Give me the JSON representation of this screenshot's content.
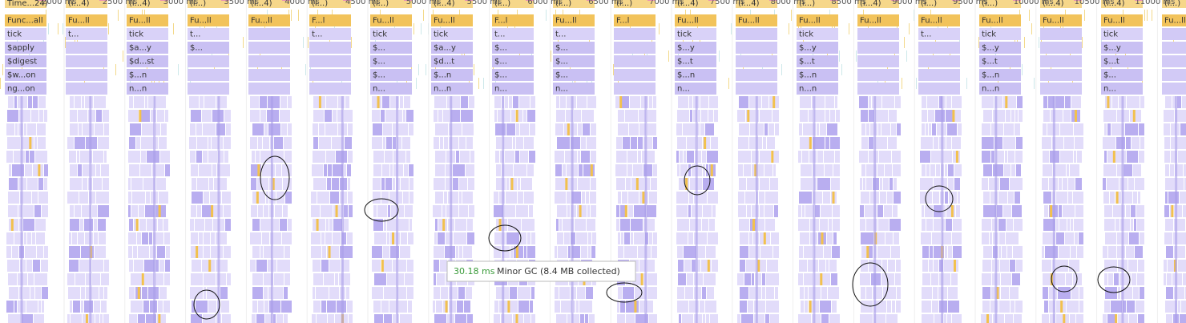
{
  "ruler": [
    "2000 ms",
    "2500 ms",
    "3000 ms",
    "3500 ms",
    "4000 ms",
    "4500 ms",
    "5000 ms",
    "5500 ms",
    "6000 ms",
    "6500 ms",
    "7000 ms",
    "7500 ms",
    "8000 ms",
    "8500 ms",
    "9000 ms",
    "9500 ms",
    "10000 ms",
    "10500 ms",
    "11000 ms"
  ],
  "columns": [
    {
      "labels": [
        "Time...24)",
        "Func...all",
        "tick",
        "$apply",
        "$digest",
        "$w...on",
        "ng...on"
      ]
    },
    {
      "labels": [
        "(i...4)",
        "Fu...ll",
        "t..."
      ]
    },
    {
      "labels": [
        "(i...4)",
        "Fu...ll",
        "tick",
        "$a...y",
        "$d...st",
        "$...n",
        "n...n"
      ]
    },
    {
      "labels": [
        "(i...)",
        "Fu...ll",
        "t...",
        "$..."
      ]
    },
    {
      "labels": [
        "(i...4)",
        "Fu...ll"
      ]
    },
    {
      "labels": [
        "(i...)",
        "F...l",
        "t..."
      ]
    },
    {
      "labels": [
        "(i...)",
        "Fu...ll",
        "tick",
        "$...",
        "$...",
        "$...",
        "n..."
      ]
    },
    {
      "labels": [
        "(i...4)",
        "Fu...ll",
        "tick",
        "$a...y",
        "$d...t",
        "$...n",
        "n...n"
      ]
    },
    {
      "labels": [
        "(i...)",
        "F...l",
        "t...",
        "$...",
        "$...",
        "$...",
        "n..."
      ]
    },
    {
      "labels": [
        "(i...)",
        "Fu...ll",
        "t...",
        "$...",
        "$...",
        "$...",
        "n..."
      ]
    },
    {
      "labels": [
        "(i...)",
        "F...l"
      ]
    },
    {
      "labels": [
        "(i...4)",
        "Fu...ll",
        "tick",
        "$...y",
        "$...t",
        "$...n",
        "n..."
      ]
    },
    {
      "labels": [
        "(i...4)",
        "Fu...ll"
      ]
    },
    {
      "labels": [
        "(i...)",
        "Fu...ll",
        "tick",
        "$...y",
        "$...t",
        "$...n",
        "n...n"
      ]
    },
    {
      "labels": [
        "(i...4)",
        "Fu...ll"
      ]
    },
    {
      "labels": [
        "(i...)",
        "Fu...ll",
        "t..."
      ]
    },
    {
      "labels": [
        "(i...)",
        "Fu...ll",
        "tick",
        "$...y",
        "$...t",
        "$...n",
        "n...n"
      ]
    },
    {
      "labels": [
        "(i...4)",
        "Fu...ll"
      ]
    },
    {
      "labels": [
        "(i...4)",
        "Fu...ll",
        "tick",
        "$...y",
        "$...t",
        "$...",
        "n..."
      ]
    },
    {
      "labels": [
        "(i...)",
        "Fu...ll"
      ]
    }
  ],
  "tooltip": {
    "duration": "30.18 ms",
    "text": "Minor GC (8.4 MB collected)"
  }
}
